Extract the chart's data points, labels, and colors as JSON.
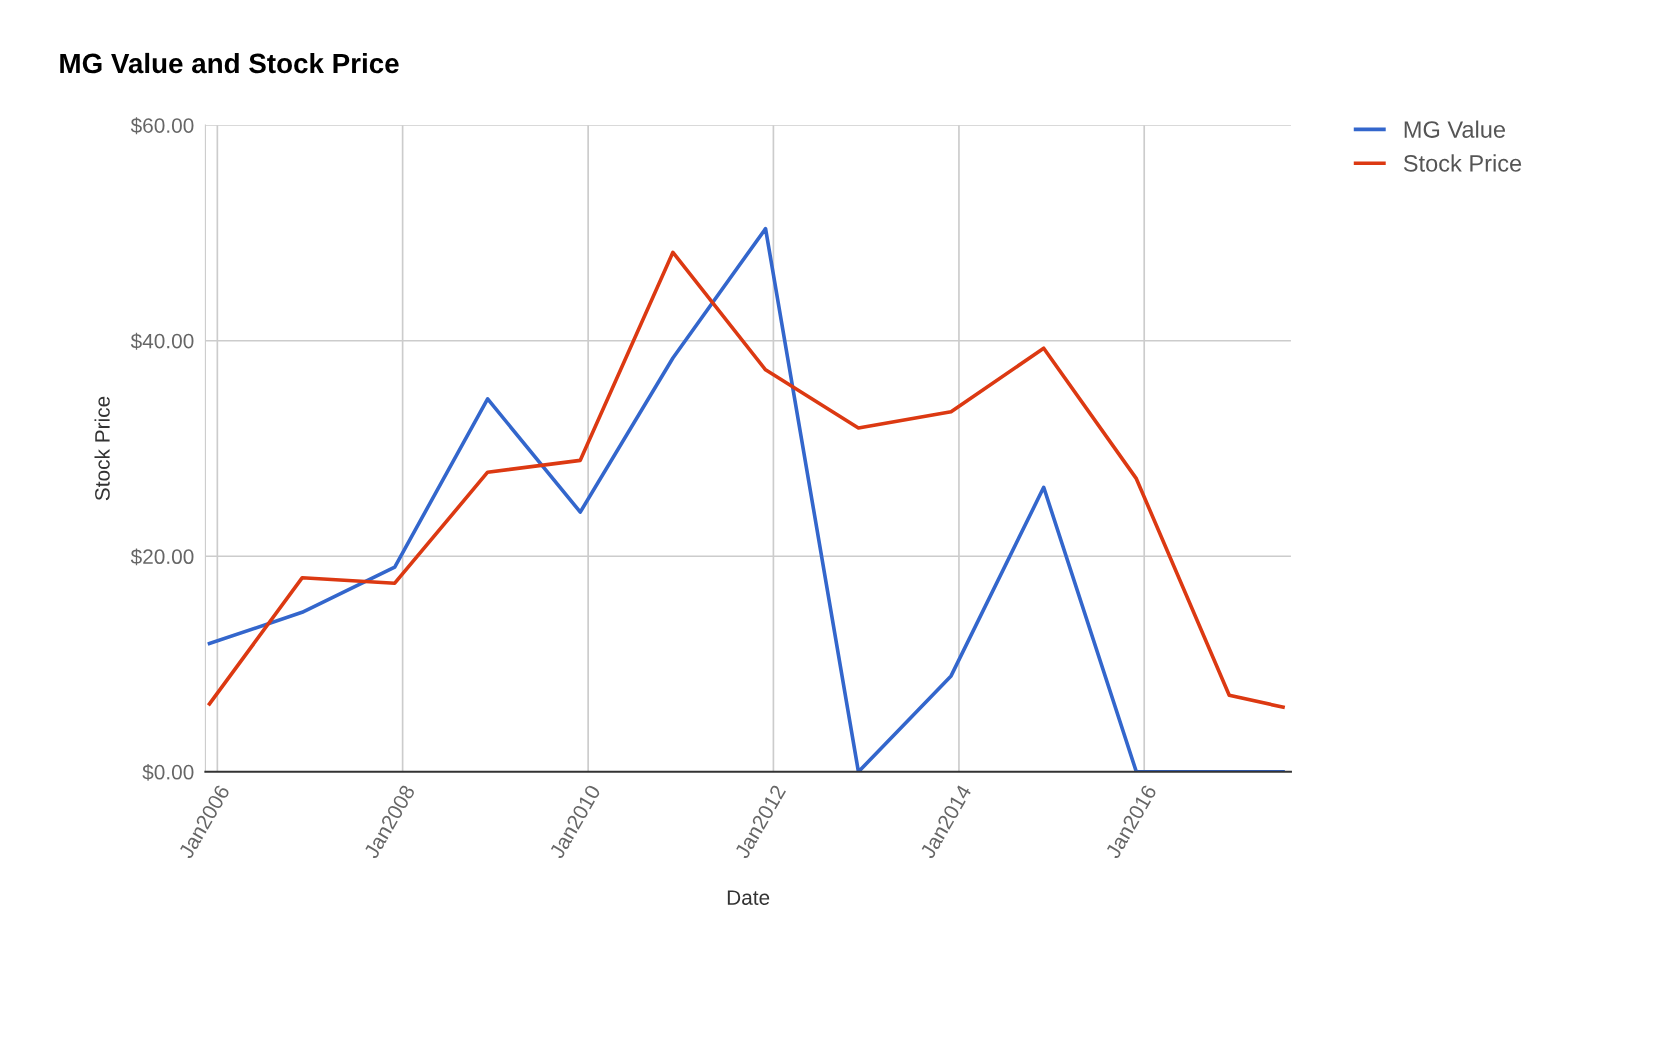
{
  "chart_data": {
    "type": "line",
    "title": "MG Value and Stock Price",
    "xlabel": "Date",
    "ylabel": "Stock Price",
    "xlim": [
      "2005-11-15",
      "2017-08-01"
    ],
    "xticks": [
      {
        "value": "2006-01-01",
        "label": "Jan2006"
      },
      {
        "value": "2008-01-01",
        "label": "Jan2008"
      },
      {
        "value": "2010-01-01",
        "label": "Jan2010"
      },
      {
        "value": "2012-01-01",
        "label": "Jan2012"
      },
      {
        "value": "2014-01-01",
        "label": "Jan2014"
      },
      {
        "value": "2016-01-01",
        "label": "Jan2016"
      }
    ],
    "ylim": [
      0,
      60
    ],
    "yticks": [
      {
        "value": 0,
        "label": "$0.00"
      },
      {
        "value": 20,
        "label": "$20.00"
      },
      {
        "value": 40,
        "label": "$40.00"
      },
      {
        "value": 60,
        "label": "$60.00"
      }
    ],
    "grid": true,
    "legend": "top right",
    "marker": "none",
    "line_style": "solid",
    "series": [
      {
        "name": "MG Value",
        "color": "#3366cc",
        "x": [
          "2005-12",
          "2006-12",
          "2007-12",
          "2008-12",
          "2009-12",
          "2010-12",
          "2011-12",
          "2012-12",
          "2013-12",
          "2014-12",
          "2015-12",
          "2016-12",
          "2017-07"
        ],
        "values": [
          11.9,
          14.8,
          19.0,
          34.6,
          24.1,
          38.4,
          50.4,
          0,
          8.9,
          26.4,
          0,
          0,
          0
        ]
      },
      {
        "name": "Stock Price",
        "color": "#dc3912",
        "x": [
          "2005-12",
          "2006-12",
          "2007-12",
          "2008-12",
          "2009-12",
          "2010-12",
          "2011-12",
          "2012-12",
          "2013-12",
          "2014-12",
          "2015-12",
          "2016-12",
          "2017-07"
        ],
        "values": [
          6.3,
          18.0,
          17.5,
          27.8,
          28.9,
          48.2,
          37.3,
          31.9,
          33.4,
          39.3,
          27.2,
          7.1,
          6.0
        ]
      }
    ]
  }
}
